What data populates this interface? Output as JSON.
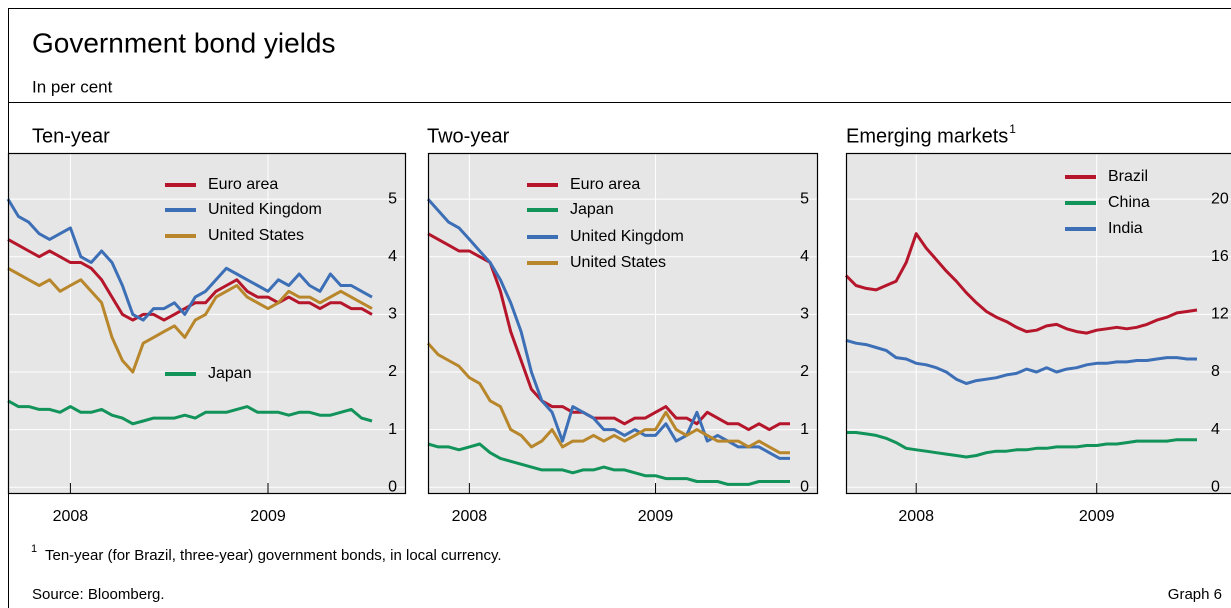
{
  "title": "Government bond yields",
  "subtitle": "In per cent",
  "chart_data": [
    {
      "type": "line",
      "title": "Ten-year",
      "categories": [
        null,
        null,
        null,
        null,
        null,
        null,
        "2008",
        null,
        null,
        null,
        null,
        null,
        null,
        null,
        null,
        null,
        null,
        null,
        null,
        null,
        null,
        null,
        null,
        null,
        null,
        "2009",
        null,
        null,
        null,
        null,
        null,
        null,
        null,
        null,
        null,
        null
      ],
      "ylim": [
        -0.1,
        5.8
      ],
      "yticks": [
        0,
        1,
        2,
        3,
        4,
        5
      ],
      "grid": true,
      "series": [
        {
          "name": "Euro area",
          "color": "#b5162b",
          "values": [
            4.3,
            4.2,
            4.1,
            4.0,
            4.1,
            4.0,
            3.9,
            3.9,
            3.8,
            3.6,
            3.3,
            3.0,
            2.9,
            3.0,
            3.0,
            2.9,
            3.0,
            3.1,
            3.2,
            3.2,
            3.4,
            3.5,
            3.6,
            3.4,
            3.3,
            3.3,
            3.2,
            3.3,
            3.2,
            3.2,
            3.1,
            3.2,
            3.2,
            3.1,
            3.1,
            3.0
          ]
        },
        {
          "name": "United Kingdom",
          "color": "#3d6fb6",
          "values": [
            5.0,
            4.7,
            4.6,
            4.4,
            4.3,
            4.4,
            4.5,
            4.0,
            3.9,
            4.1,
            3.9,
            3.5,
            3.0,
            2.9,
            3.1,
            3.1,
            3.2,
            3.0,
            3.3,
            3.4,
            3.6,
            3.8,
            3.7,
            3.6,
            3.5,
            3.4,
            3.6,
            3.5,
            3.7,
            3.5,
            3.4,
            3.7,
            3.5,
            3.5,
            3.4,
            3.3
          ]
        },
        {
          "name": "United States",
          "color": "#b8862b",
          "values": [
            3.8,
            3.7,
            3.6,
            3.5,
            3.6,
            3.4,
            3.5,
            3.6,
            3.4,
            3.2,
            2.6,
            2.2,
            2.0,
            2.5,
            2.6,
            2.7,
            2.8,
            2.6,
            2.9,
            3.0,
            3.3,
            3.4,
            3.5,
            3.3,
            3.2,
            3.1,
            3.2,
            3.4,
            3.3,
            3.3,
            3.2,
            3.3,
            3.4,
            3.3,
            3.2,
            3.1
          ]
        },
        {
          "name": "Japan",
          "color": "#11935a",
          "values": [
            1.5,
            1.4,
            1.4,
            1.35,
            1.35,
            1.3,
            1.4,
            1.3,
            1.3,
            1.35,
            1.25,
            1.2,
            1.1,
            1.15,
            1.2,
            1.2,
            1.2,
            1.25,
            1.2,
            1.3,
            1.3,
            1.3,
            1.35,
            1.4,
            1.3,
            1.3,
            1.3,
            1.25,
            1.3,
            1.3,
            1.25,
            1.25,
            1.3,
            1.35,
            1.2,
            1.15
          ]
        }
      ]
    },
    {
      "type": "line",
      "title": "Two-year",
      "categories": [
        null,
        null,
        null,
        null,
        "2008",
        null,
        null,
        null,
        null,
        null,
        null,
        null,
        null,
        null,
        null,
        null,
        null,
        null,
        null,
        null,
        null,
        null,
        "2009",
        null,
        null,
        null,
        null,
        null,
        null,
        null,
        null,
        null,
        null,
        null,
        null,
        null
      ],
      "ylim": [
        -0.1,
        5.8
      ],
      "yticks": [
        0,
        1,
        2,
        3,
        4,
        5
      ],
      "grid": true,
      "series": [
        {
          "name": "Euro area",
          "color": "#b5162b",
          "values": [
            4.4,
            4.3,
            4.2,
            4.1,
            4.1,
            4.0,
            3.9,
            3.4,
            2.7,
            2.2,
            1.7,
            1.5,
            1.4,
            1.4,
            1.3,
            1.3,
            1.2,
            1.2,
            1.2,
            1.1,
            1.2,
            1.2,
            1.3,
            1.4,
            1.2,
            1.2,
            1.1,
            1.3,
            1.2,
            1.1,
            1.1,
            1.0,
            1.1,
            1.0,
            1.1,
            1.1
          ]
        },
        {
          "name": "Japan",
          "color": "#11935a",
          "values": [
            0.75,
            0.7,
            0.7,
            0.65,
            0.7,
            0.75,
            0.6,
            0.5,
            0.45,
            0.4,
            0.35,
            0.3,
            0.3,
            0.3,
            0.25,
            0.3,
            0.3,
            0.35,
            0.3,
            0.3,
            0.25,
            0.2,
            0.2,
            0.15,
            0.15,
            0.15,
            0.1,
            0.1,
            0.1,
            0.05,
            0.05,
            0.05,
            0.1,
            0.1,
            0.1,
            0.1
          ]
        },
        {
          "name": "United Kingdom",
          "color": "#3d6fb6",
          "values": [
            5.0,
            4.8,
            4.6,
            4.5,
            4.3,
            4.1,
            3.9,
            3.6,
            3.2,
            2.7,
            2.0,
            1.5,
            1.3,
            0.8,
            1.4,
            1.3,
            1.2,
            1.0,
            1.0,
            0.9,
            1.0,
            0.9,
            0.9,
            1.1,
            0.8,
            0.9,
            1.3,
            0.8,
            0.9,
            0.8,
            0.7,
            0.7,
            0.7,
            0.6,
            0.5,
            0.5
          ]
        },
        {
          "name": "United States",
          "color": "#b8862b",
          "values": [
            2.5,
            2.3,
            2.2,
            2.1,
            1.9,
            1.8,
            1.5,
            1.4,
            1.0,
            0.9,
            0.7,
            0.8,
            1.0,
            0.7,
            0.8,
            0.8,
            0.9,
            0.8,
            0.9,
            0.8,
            0.9,
            1.0,
            1.0,
            1.3,
            1.0,
            0.9,
            1.0,
            0.9,
            0.8,
            0.8,
            0.8,
            0.7,
            0.8,
            0.7,
            0.6,
            0.6
          ]
        }
      ]
    },
    {
      "type": "line",
      "title": "Emerging markets",
      "title_note": "1",
      "categories": [
        null,
        null,
        null,
        null,
        null,
        null,
        null,
        "2008",
        null,
        null,
        null,
        null,
        null,
        null,
        null,
        null,
        null,
        null,
        null,
        null,
        null,
        null,
        null,
        null,
        null,
        "2009",
        null,
        null,
        null,
        null,
        null,
        null,
        null,
        null,
        null,
        null
      ],
      "ylim": [
        -0.4,
        23.2
      ],
      "yticks": [
        0,
        4,
        8,
        12,
        16,
        20
      ],
      "grid": true,
      "series": [
        {
          "name": "Brazil",
          "color": "#b5162b",
          "values": [
            14.7,
            14.0,
            13.8,
            13.7,
            14.0,
            14.3,
            15.6,
            17.6,
            16.6,
            15.8,
            15.0,
            14.3,
            13.5,
            12.8,
            12.2,
            11.8,
            11.5,
            11.1,
            10.8,
            10.9,
            11.2,
            11.3,
            11.0,
            10.8,
            10.7,
            10.9,
            11.0,
            11.1,
            11.0,
            11.1,
            11.3,
            11.6,
            11.8,
            12.1,
            12.2,
            12.3
          ]
        },
        {
          "name": "China",
          "color": "#11935a",
          "values": [
            3.8,
            3.8,
            3.7,
            3.6,
            3.4,
            3.1,
            2.7,
            2.6,
            2.5,
            2.4,
            2.3,
            2.2,
            2.1,
            2.2,
            2.4,
            2.5,
            2.5,
            2.6,
            2.6,
            2.7,
            2.7,
            2.8,
            2.8,
            2.8,
            2.9,
            2.9,
            3.0,
            3.0,
            3.1,
            3.2,
            3.2,
            3.2,
            3.2,
            3.3,
            3.3,
            3.3
          ]
        },
        {
          "name": "India",
          "color": "#3d6fb6",
          "values": [
            10.2,
            10.0,
            9.9,
            9.7,
            9.5,
            9.0,
            8.9,
            8.6,
            8.5,
            8.3,
            8.0,
            7.5,
            7.2,
            7.4,
            7.5,
            7.6,
            7.8,
            7.9,
            8.2,
            8.0,
            8.3,
            8.0,
            8.2,
            8.3,
            8.5,
            8.6,
            8.6,
            8.7,
            8.7,
            8.8,
            8.8,
            8.9,
            9.0,
            9.0,
            8.9,
            8.9
          ]
        }
      ]
    }
  ],
  "footnote": {
    "marker": "1",
    "text": "Ten-year (for Brazil, three-year) government bonds, in local currency."
  },
  "source": "Source: Bloomberg.",
  "graph_label": "Graph 6"
}
